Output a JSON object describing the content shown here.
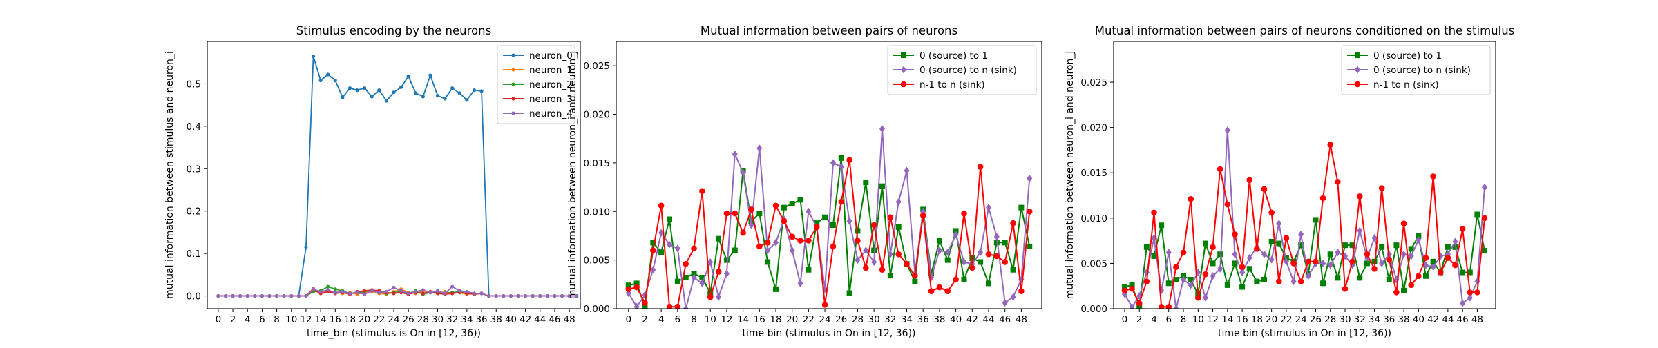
{
  "chart_data": [
    {
      "type": "line",
      "title": "Stimulus encoding by the neurons",
      "xlabel": "time_bin (stimulus is On in [12, 36))",
      "ylabel": "mutual information between stimulus and neuron_i",
      "xlim": [
        -1.5,
        49.5
      ],
      "ylim": [
        -0.03,
        0.6
      ],
      "xticks": [
        0,
        2,
        4,
        6,
        8,
        10,
        12,
        14,
        16,
        18,
        20,
        22,
        24,
        26,
        28,
        30,
        32,
        34,
        36,
        38,
        40,
        42,
        44,
        46,
        48
      ],
      "yticks": [
        0.0,
        0.1,
        0.2,
        0.3,
        0.4,
        0.5
      ],
      "ytick_labels": [
        "0.0",
        "0.1",
        "0.2",
        "0.3",
        "0.4",
        "0.5"
      ],
      "legend_position": "top-right",
      "x": [
        0,
        1,
        2,
        3,
        4,
        5,
        6,
        7,
        8,
        9,
        10,
        11,
        12,
        13,
        14,
        15,
        16,
        17,
        18,
        19,
        20,
        21,
        22,
        23,
        24,
        25,
        26,
        27,
        28,
        29,
        30,
        31,
        32,
        33,
        34,
        35,
        36,
        37,
        38,
        39,
        40,
        41,
        42,
        43,
        44,
        45,
        46,
        47,
        48,
        49
      ],
      "series": [
        {
          "name": "neuron_0",
          "color": "#1f77b4",
          "marker": "dot",
          "values": [
            0,
            0,
            0,
            0,
            0,
            0,
            0,
            0,
            0,
            0,
            0,
            0,
            0.115,
            0.565,
            0.508,
            0.522,
            0.508,
            0.468,
            0.49,
            0.485,
            0.49,
            0.47,
            0.485,
            0.46,
            0.48,
            0.492,
            0.518,
            0.478,
            0.47,
            0.52,
            0.472,
            0.465,
            0.49,
            0.478,
            0.462,
            0.485,
            0.483,
            0,
            0,
            0,
            0,
            0,
            0,
            0,
            0,
            0,
            0,
            0,
            0,
            0
          ]
        },
        {
          "name": "neuron_1",
          "color": "#ff7f0e",
          "marker": "dot",
          "values": [
            0,
            0,
            0,
            0,
            0,
            0,
            0,
            0,
            0,
            0,
            0,
            0,
            0,
            0.018,
            0.008,
            0.012,
            0.01,
            0.006,
            0.008,
            0.004,
            0.008,
            0.01,
            0.006,
            0.004,
            0.01,
            0.016,
            0.008,
            0.006,
            0.012,
            0.008,
            0.006,
            0.01,
            0.006,
            0.008,
            0.004,
            0.006,
            0.006,
            0,
            0,
            0,
            0,
            0,
            0,
            0,
            0,
            0,
            0,
            0,
            0,
            0
          ]
        },
        {
          "name": "neuron_2",
          "color": "#2ca02c",
          "marker": "dot",
          "values": [
            0,
            0,
            0,
            0,
            0,
            0,
            0,
            0,
            0,
            0,
            0,
            0,
            0,
            0.01,
            0.012,
            0.022,
            0.016,
            0.012,
            0.006,
            0.008,
            0.01,
            0.014,
            0.008,
            0.006,
            0.008,
            0.01,
            0.006,
            0.012,
            0.004,
            0.008,
            0.01,
            0.006,
            0.008,
            0.01,
            0.006,
            0.004,
            0.006,
            0,
            0,
            0,
            0,
            0,
            0,
            0,
            0,
            0,
            0,
            0,
            0,
            0
          ]
        },
        {
          "name": "neuron_3",
          "color": "#d62728",
          "marker": "dot",
          "values": [
            0,
            0,
            0,
            0,
            0,
            0,
            0,
            0,
            0,
            0,
            0,
            0,
            0,
            0.014,
            0.006,
            0.01,
            0.006,
            0.008,
            0.004,
            0.01,
            0.012,
            0.014,
            0.012,
            0.008,
            0.006,
            0.008,
            0.004,
            0.008,
            0.006,
            0.01,
            0.006,
            0.004,
            0.006,
            0.008,
            0.006,
            0.004,
            0.006,
            0,
            0,
            0,
            0,
            0,
            0,
            0,
            0,
            0,
            0,
            0,
            0,
            0
          ]
        },
        {
          "name": "neuron_4",
          "color": "#9467bd",
          "marker": "dot",
          "values": [
            0,
            0,
            0,
            0,
            0,
            0,
            0,
            0,
            0,
            0,
            0,
            0,
            0,
            0.016,
            0.01,
            0.014,
            0.008,
            0.01,
            0.006,
            0.008,
            0.004,
            0.012,
            0.008,
            0.01,
            0.02,
            0.012,
            0.006,
            0.01,
            0.014,
            0.008,
            0.012,
            0.006,
            0.022,
            0.012,
            0.01,
            0.006,
            0.006,
            0,
            0,
            0,
            0,
            0,
            0,
            0,
            0,
            0,
            0,
            0,
            0,
            0
          ]
        }
      ]
    },
    {
      "type": "line",
      "title": "Mutual information between pairs of neurons",
      "xlabel": "time bin (stimulus in On in [12, 36))",
      "ylabel": "mutual information between neuron_i and neuron_j",
      "xlim": [
        -1.5,
        50.5
      ],
      "ylim": [
        0,
        0.0275
      ],
      "xticks": [
        0,
        2,
        4,
        6,
        8,
        10,
        12,
        14,
        16,
        18,
        20,
        22,
        24,
        26,
        28,
        30,
        32,
        34,
        36,
        38,
        40,
        42,
        44,
        46,
        48
      ],
      "yticks": [
        0.0,
        0.005,
        0.01,
        0.015,
        0.02,
        0.025
      ],
      "ytick_labels": [
        "0.000",
        "0.005",
        "0.010",
        "0.015",
        "0.020",
        "0.025"
      ],
      "legend_position": "top-right",
      "x": [
        0,
        1,
        2,
        3,
        4,
        5,
        6,
        7,
        8,
        9,
        10,
        11,
        12,
        13,
        14,
        15,
        16,
        17,
        18,
        19,
        20,
        21,
        22,
        23,
        24,
        25,
        26,
        27,
        28,
        29,
        30,
        31,
        32,
        33,
        34,
        35,
        36,
        37,
        38,
        39,
        40,
        41,
        42,
        43,
        44,
        45,
        46,
        47,
        48,
        49
      ],
      "series": [
        {
          "name": "0 (source) to 1",
          "color": "#008000",
          "marker": "square",
          "values": [
            0.0024,
            0.0026,
            0.0002,
            0.0068,
            0.0058,
            0.0092,
            0.0028,
            0.0032,
            0.0036,
            0.0032,
            0.0016,
            0.0072,
            0.005,
            0.006,
            0.0142,
            0.009,
            0.0098,
            0.0048,
            0.002,
            0.0104,
            0.0108,
            0.0112,
            0.004,
            0.0088,
            0.0094,
            0.0086,
            0.0155,
            0.0016,
            0.008,
            0.013,
            0.006,
            0.0126,
            0.0034,
            0.0084,
            0.0046,
            0.0028,
            0.0102,
            0.0036,
            0.007,
            0.005,
            0.008,
            0.003,
            0.0052,
            0.0048,
            0.0026,
            0.0068,
            0.0068,
            0.004,
            0.0104,
            0.0064
          ]
        },
        {
          "name": "0 (source) to n (sink)",
          "color": "#9467bd",
          "marker": "diamond",
          "values": [
            0.0016,
            0.0002,
            0.0014,
            0.004,
            0.0078,
            0.0066,
            0.0062,
            0.0,
            0.0032,
            0.0026,
            0.0048,
            0.0012,
            0.0036,
            0.0159,
            0.014,
            0.0086,
            0.0165,
            0.006,
            0.0068,
            0.0092,
            0.006,
            0.0026,
            0.01,
            0.0084,
            0.002,
            0.015,
            0.0146,
            0.009,
            0.005,
            0.006,
            0.0048,
            0.0185,
            0.0056,
            0.011,
            0.0142,
            0.0036,
            0.01,
            0.0032,
            0.006,
            0.0058,
            0.0076,
            0.0048,
            0.0046,
            0.0058,
            0.0104,
            0.0074,
            0.0006,
            0.0012,
            0.003,
            0.0134
          ]
        },
        {
          "name": "n-1 to n (sink)",
          "color": "#ff0000",
          "marker": "circle",
          "values": [
            0.002,
            0.0022,
            0.0006,
            0.006,
            0.0106,
            0.0002,
            0.0002,
            0.0046,
            0.0062,
            0.0121,
            0.0012,
            0.0038,
            0.0098,
            0.0098,
            0.0078,
            0.0102,
            0.0064,
            0.0068,
            0.0106,
            0.009,
            0.0074,
            0.007,
            0.007,
            0.0084,
            0.0004,
            0.0064,
            0.011,
            0.0153,
            0.007,
            0.0042,
            0.0086,
            0.004,
            0.0094,
            0.0056,
            0.0046,
            0.0034,
            0.0096,
            0.0018,
            0.0022,
            0.0018,
            0.003,
            0.0098,
            0.0042,
            0.0146,
            0.0056,
            0.0054,
            0.0048,
            0.0088,
            0.0018,
            0.01
          ]
        }
      ]
    },
    {
      "type": "line",
      "title": "Mutual information between pairs of neurons conditioned on the stimulus",
      "xlabel": "time bin (stimulus in On in [12, 36))",
      "ylabel": "mutual information between neuron_i and neuron_j",
      "xlim": [
        -1.5,
        50.5
      ],
      "ylim": [
        0,
        0.0295
      ],
      "xticks": [
        0,
        2,
        4,
        6,
        8,
        10,
        12,
        14,
        16,
        18,
        20,
        22,
        24,
        26,
        28,
        30,
        32,
        34,
        36,
        38,
        40,
        42,
        44,
        46,
        48
      ],
      "yticks": [
        0.0,
        0.005,
        0.01,
        0.015,
        0.02,
        0.025
      ],
      "ytick_labels": [
        "0.000",
        "0.005",
        "0.010",
        "0.015",
        "0.020",
        "0.025"
      ],
      "legend_position": "top-right",
      "x": [
        0,
        1,
        2,
        3,
        4,
        5,
        6,
        7,
        8,
        9,
        10,
        11,
        12,
        13,
        14,
        15,
        16,
        17,
        18,
        19,
        20,
        21,
        22,
        23,
        24,
        25,
        26,
        27,
        28,
        29,
        30,
        31,
        32,
        33,
        34,
        35,
        36,
        37,
        38,
        39,
        40,
        41,
        42,
        43,
        44,
        45,
        46,
        47,
        48,
        49
      ],
      "series": [
        {
          "name": "0 (source) to 1",
          "color": "#008000",
          "marker": "square",
          "values": [
            0.0024,
            0.0026,
            0.0002,
            0.0068,
            0.0058,
            0.0092,
            0.0028,
            0.0032,
            0.0036,
            0.0032,
            0.0016,
            0.0072,
            0.005,
            0.006,
            0.0026,
            0.005,
            0.0024,
            0.0044,
            0.003,
            0.0032,
            0.0074,
            0.0072,
            0.0056,
            0.0052,
            0.007,
            0.0038,
            0.0098,
            0.0028,
            0.006,
            0.0034,
            0.007,
            0.007,
            0.0034,
            0.005,
            0.0052,
            0.0068,
            0.0032,
            0.007,
            0.002,
            0.0066,
            0.008,
            0.0036,
            0.0052,
            0.004,
            0.0068,
            0.0068,
            0.004,
            0.004,
            0.0104,
            0.0064
          ]
        },
        {
          "name": "0 (source) to n (sink)",
          "color": "#9467bd",
          "marker": "diamond",
          "values": [
            0.0016,
            0.0002,
            0.0014,
            0.004,
            0.0078,
            0.002,
            0.0062,
            0.0,
            0.0032,
            0.0026,
            0.004,
            0.0012,
            0.0036,
            0.0044,
            0.0197,
            0.006,
            0.004,
            0.0056,
            0.0068,
            0.006,
            0.0054,
            0.0094,
            0.0052,
            0.003,
            0.0082,
            0.0036,
            0.005,
            0.005,
            0.0048,
            0.0062,
            0.0058,
            0.0048,
            0.0086,
            0.0056,
            0.0078,
            0.005,
            0.006,
            0.0032,
            0.006,
            0.0058,
            0.0076,
            0.0048,
            0.0046,
            0.0058,
            0.006,
            0.0074,
            0.0006,
            0.0012,
            0.003,
            0.0134
          ]
        },
        {
          "name": "n-1 to n (sink)",
          "color": "#ff0000",
          "marker": "circle",
          "values": [
            0.002,
            0.0022,
            0.0006,
            0.003,
            0.0106,
            0.0002,
            0.0002,
            0.0046,
            0.0062,
            0.0121,
            0.0012,
            0.0038,
            0.0068,
            0.0154,
            0.0115,
            0.0082,
            0.0046,
            0.0142,
            0.0066,
            0.0132,
            0.0106,
            0.003,
            0.0078,
            0.005,
            0.003,
            0.0052,
            0.0052,
            0.0122,
            0.0181,
            0.014,
            0.0022,
            0.0052,
            0.0124,
            0.006,
            0.0044,
            0.0133,
            0.0054,
            0.0018,
            0.0094,
            0.0026,
            0.0036,
            0.0056,
            0.0146,
            0.004,
            0.0056,
            0.0048,
            0.0088,
            0.0018,
            0.0018,
            0.01
          ]
        }
      ]
    }
  ]
}
